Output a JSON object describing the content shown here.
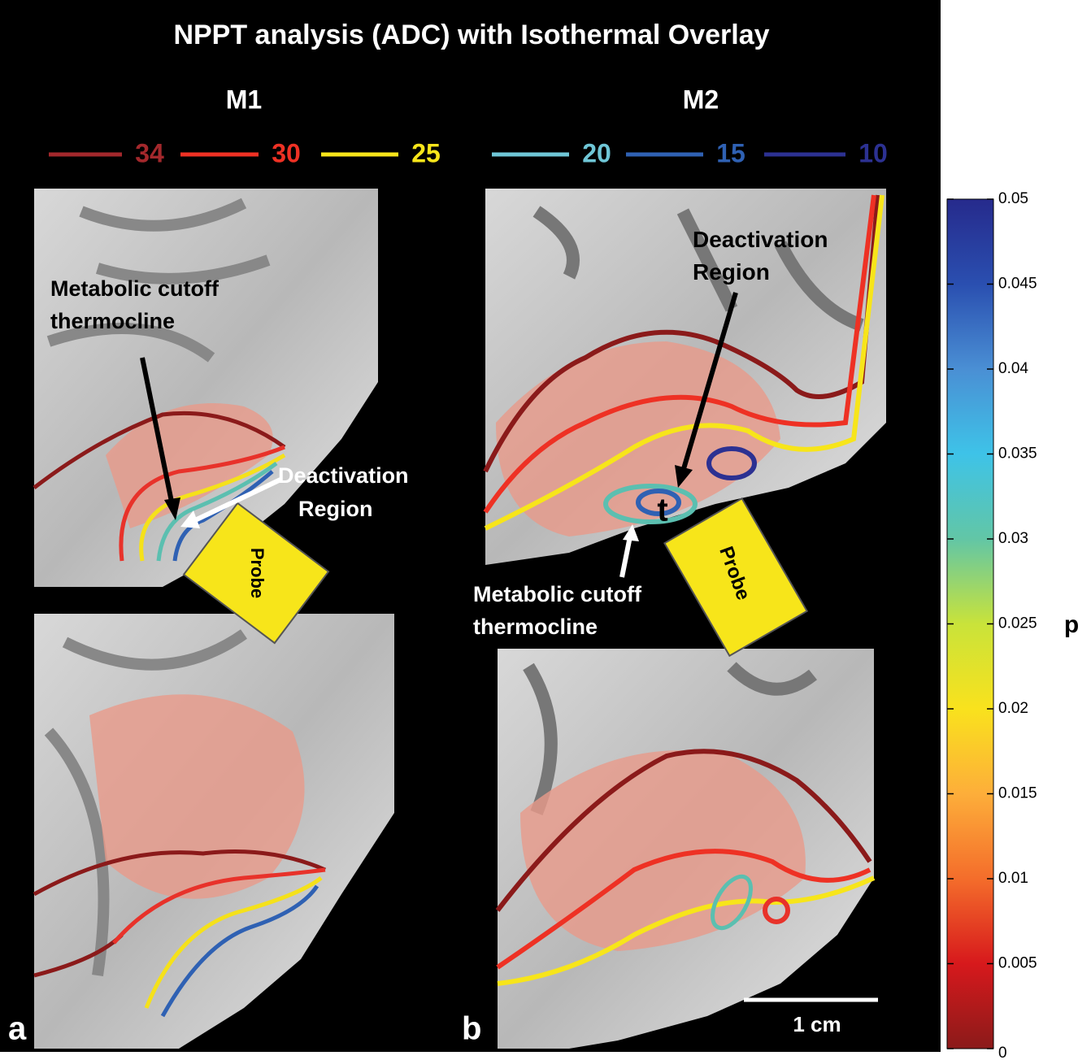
{
  "title": "NPPT analysis (ADC) with Isothermal Overlay",
  "panels": [
    {
      "label": "a",
      "subject": "M1",
      "annotations": {
        "thermocline": [
          "Metabolic cutoff",
          "thermocline"
        ],
        "deactivation": [
          "Deactivation",
          "Region"
        ],
        "probe": "Probe"
      }
    },
    {
      "label": "b",
      "subject": "M2",
      "annotations": {
        "thermocline": [
          "Metabolic cutoff",
          "thermocline"
        ],
        "deactivation": [
          "Deactivation",
          "Region"
        ],
        "probe": "Probe",
        "marker": "t"
      },
      "scale_bar": "1 cm"
    }
  ],
  "isotherms": [
    {
      "label": "34",
      "color": "#a3282c"
    },
    {
      "label": "30",
      "color": "#ee3124"
    },
    {
      "label": "25",
      "color": "#f7e51a"
    },
    {
      "label": "20",
      "color": "#6fc6d6"
    },
    {
      "label": "15",
      "color": "#2f61b3"
    },
    {
      "label": "10",
      "color": "#2c3192"
    }
  ],
  "colorbar": {
    "label": "p",
    "lim": [
      0,
      0.05
    ],
    "ticks": [
      0,
      0.005,
      0.01,
      0.015,
      0.02,
      0.025,
      0.03,
      0.035,
      0.04,
      0.045,
      0.05
    ],
    "colormap": [
      "#8b1a1a",
      "#d7191c",
      "#f46d2b",
      "#fdae3a",
      "#f9e21d",
      "#c9e33a",
      "#62c6a6",
      "#3ec3e8",
      "#4a8fd4",
      "#2a4fb0",
      "#262a8c"
    ]
  }
}
